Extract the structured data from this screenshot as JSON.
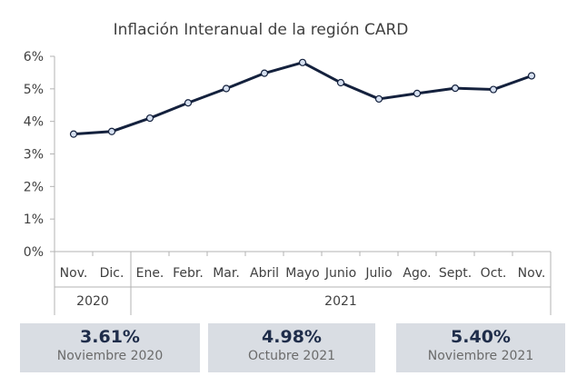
{
  "chart_data": {
    "type": "line",
    "title": "Inflación Interanual de la región CARD",
    "categories": [
      "Nov.",
      "Dic.",
      "Ene.",
      "Febr.",
      "Mar.",
      "Abril",
      "Mayo",
      "Junio",
      "Julio",
      "Ago.",
      "Sept.",
      "Oct.",
      "Nov."
    ],
    "groups": [
      {
        "label": "2020",
        "count": 2
      },
      {
        "label": "2021",
        "count": 11
      }
    ],
    "series": [
      {
        "values": [
          3.61,
          3.69,
          4.1,
          4.57,
          5.01,
          5.48,
          5.81,
          5.19,
          4.69,
          4.86,
          5.02,
          4.98,
          5.4
        ]
      }
    ],
    "yticks": [
      "0%",
      "1%",
      "2%",
      "3%",
      "4%",
      "5%",
      "6%"
    ],
    "ylim": [
      0,
      6
    ],
    "grid": false,
    "colors": {
      "line": "#14213d",
      "marker_fill": "#d6e0f0"
    }
  },
  "cards": [
    {
      "value": "3.61%",
      "label": "Noviembre 2020"
    },
    {
      "value": "4.98%",
      "label": "Octubre 2021"
    },
    {
      "value": "5.40%",
      "label": "Noviembre 2021"
    }
  ]
}
